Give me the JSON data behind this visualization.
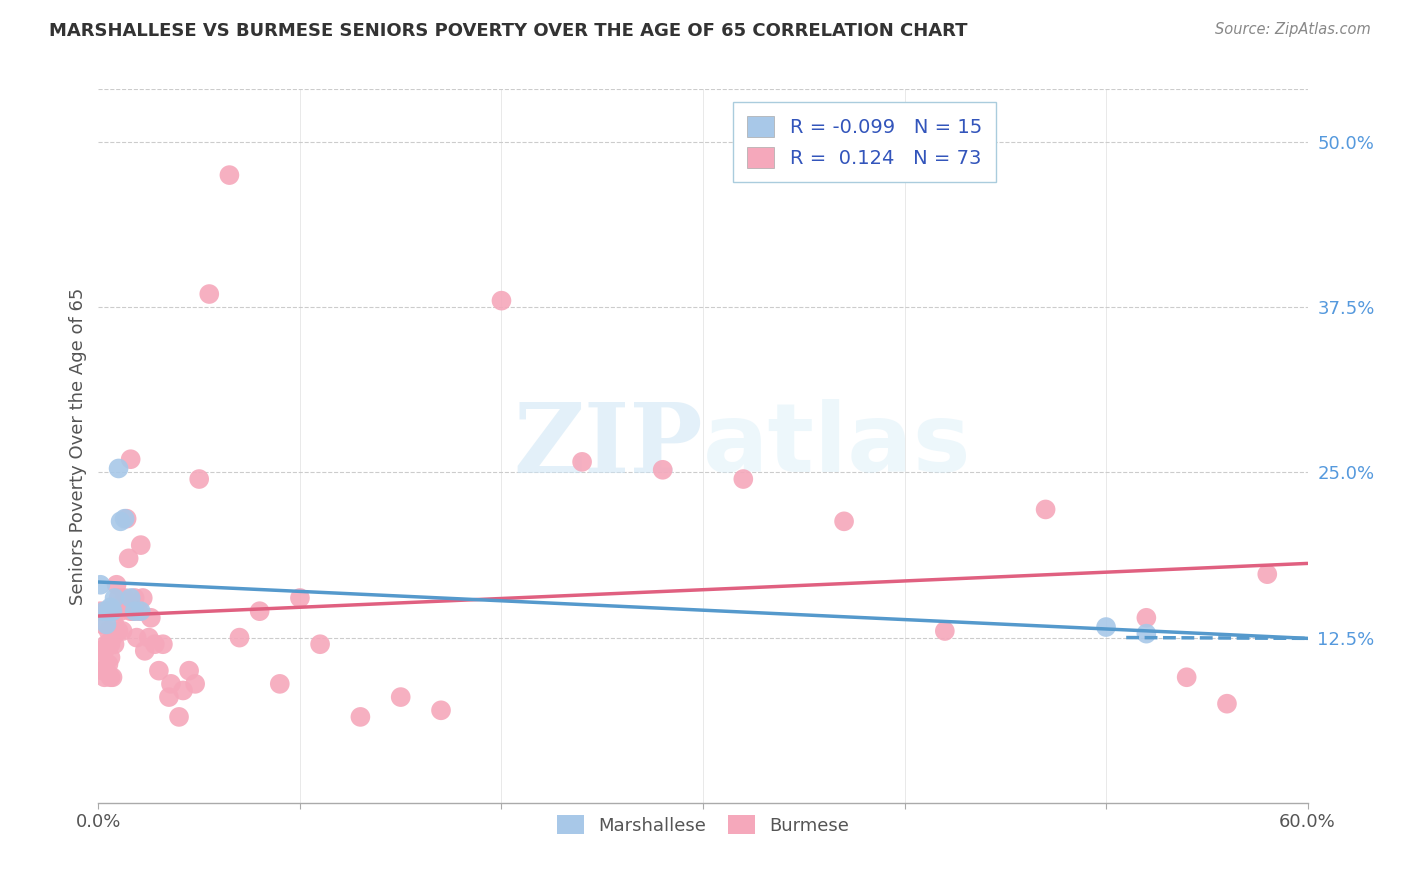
{
  "title": "MARSHALLESE VS BURMESE SENIORS POVERTY OVER THE AGE OF 65 CORRELATION CHART",
  "source": "Source: ZipAtlas.com",
  "ylabel": "Seniors Poverty Over the Age of 65",
  "ytick_values": [
    0.0,
    0.125,
    0.25,
    0.375,
    0.5
  ],
  "ytick_labels": [
    "",
    "12.5%",
    "25.0%",
    "37.5%",
    "50.0%"
  ],
  "xlim": [
    0.0,
    0.6
  ],
  "ylim": [
    0.0,
    0.54
  ],
  "watermark_zip": "ZIP",
  "watermark_atlas": "atlas",
  "marshallese_color": "#a8c8e8",
  "burmese_color": "#f5a8bb",
  "marshallese_R": -0.099,
  "marshallese_N": 15,
  "burmese_R": 0.124,
  "burmese_N": 73,
  "marshallese_line_color": "#5599cc",
  "burmese_line_color": "#e06080",
  "legend_R_color": "#3355bb",
  "legend_N_color": "#3355bb",
  "ytick_color": "#5599dd",
  "xtick_color": "#555555",
  "ylabel_color": "#555555",
  "grid_color": "#cccccc",
  "marshallese_x": [
    0.001,
    0.003,
    0.004,
    0.005,
    0.006,
    0.007,
    0.008,
    0.01,
    0.011,
    0.013,
    0.016,
    0.018,
    0.021,
    0.5,
    0.52
  ],
  "marshallese_y": [
    0.165,
    0.145,
    0.135,
    0.145,
    0.148,
    0.145,
    0.155,
    0.253,
    0.213,
    0.215,
    0.155,
    0.145,
    0.145,
    0.133,
    0.128
  ],
  "burmese_x": [
    0.001,
    0.001,
    0.002,
    0.002,
    0.003,
    0.003,
    0.003,
    0.004,
    0.004,
    0.004,
    0.005,
    0.005,
    0.005,
    0.005,
    0.006,
    0.006,
    0.006,
    0.007,
    0.007,
    0.008,
    0.008,
    0.008,
    0.009,
    0.009,
    0.01,
    0.01,
    0.011,
    0.012,
    0.013,
    0.014,
    0.015,
    0.016,
    0.016,
    0.017,
    0.018,
    0.019,
    0.02,
    0.021,
    0.022,
    0.023,
    0.025,
    0.026,
    0.028,
    0.03,
    0.032,
    0.035,
    0.036,
    0.04,
    0.042,
    0.045,
    0.048,
    0.05,
    0.055,
    0.065,
    0.07,
    0.08,
    0.09,
    0.1,
    0.11,
    0.13,
    0.15,
    0.17,
    0.2,
    0.24,
    0.28,
    0.32,
    0.37,
    0.42,
    0.47,
    0.52,
    0.54,
    0.56,
    0.58
  ],
  "burmese_y": [
    0.145,
    0.115,
    0.135,
    0.1,
    0.115,
    0.105,
    0.095,
    0.145,
    0.12,
    0.1,
    0.145,
    0.13,
    0.12,
    0.105,
    0.12,
    0.11,
    0.095,
    0.125,
    0.095,
    0.145,
    0.135,
    0.12,
    0.145,
    0.165,
    0.155,
    0.13,
    0.145,
    0.13,
    0.155,
    0.215,
    0.185,
    0.145,
    0.26,
    0.145,
    0.155,
    0.125,
    0.145,
    0.195,
    0.155,
    0.115,
    0.125,
    0.14,
    0.12,
    0.1,
    0.12,
    0.08,
    0.09,
    0.065,
    0.085,
    0.1,
    0.09,
    0.245,
    0.385,
    0.475,
    0.125,
    0.145,
    0.09,
    0.155,
    0.12,
    0.065,
    0.08,
    0.07,
    0.38,
    0.258,
    0.252,
    0.245,
    0.213,
    0.13,
    0.222,
    0.14,
    0.095,
    0.075,
    0.173
  ]
}
